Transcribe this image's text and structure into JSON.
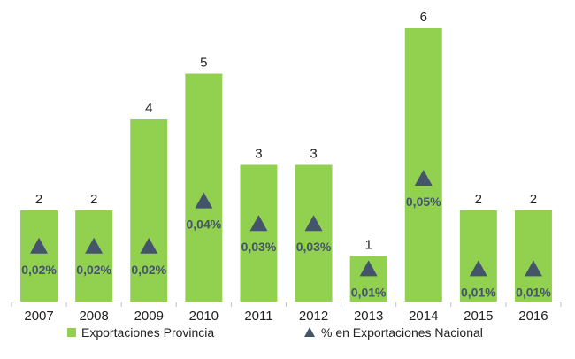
{
  "chart_data": {
    "type": "bar",
    "categories": [
      "2007",
      "2008",
      "2009",
      "2010",
      "2011",
      "2012",
      "2013",
      "2014",
      "2015",
      "2016"
    ],
    "series": [
      {
        "name": "Exportaciones Provincia",
        "type": "bar",
        "values": [
          2,
          2,
          4,
          5,
          3,
          3,
          1,
          6,
          2,
          2
        ],
        "labels": [
          "2",
          "2",
          "4",
          "5",
          "3",
          "3",
          "1",
          "6",
          "2",
          "2"
        ],
        "color": "#92d050"
      },
      {
        "name": "% en Exportaciones Nacional",
        "type": "marker",
        "marker": "triangle",
        "values": [
          0.02,
          0.02,
          0.02,
          0.04,
          0.03,
          0.03,
          0.01,
          0.05,
          0.01,
          0.01
        ],
        "labels": [
          "0,02%",
          "0,02%",
          "0,02%",
          "0,04%",
          "0,03%",
          "0,03%",
          "0,01%",
          "0,05%",
          "0,01%",
          "0,01%"
        ],
        "color": "#44546a"
      }
    ],
    "legend_position": "bottom",
    "grid": false
  }
}
